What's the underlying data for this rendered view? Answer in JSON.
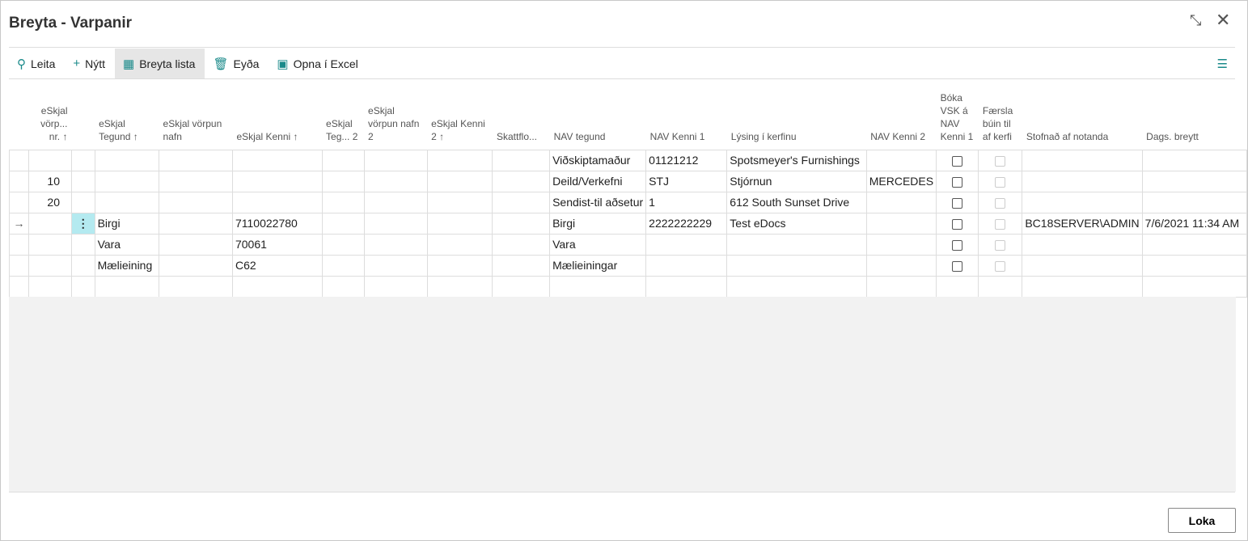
{
  "window": {
    "title": "Breyta - Varpanir"
  },
  "toolbar": {
    "items": [
      {
        "label": "Leita",
        "icon": "search-icon"
      },
      {
        "label": "Nýtt",
        "icon": "plus-icon"
      },
      {
        "label": "Breyta lista",
        "icon": "edit-list-icon",
        "active": true
      },
      {
        "label": "Eyða",
        "icon": "trash-icon"
      },
      {
        "label": "Opna í Excel",
        "icon": "excel-icon"
      }
    ]
  },
  "columns": [
    "",
    "eSkjal vörp... nr. ↑",
    "",
    "eSkjal Tegund ↑",
    "eSkjal vörpun nafn",
    "eSkjal Kenni ↑",
    "eSkjal Teg... 2",
    "eSkjal vörpun nafn 2",
    "eSkjal Kenni 2 ↑",
    "Skattflo...",
    "NAV tegund",
    "NAV Kenni 1",
    "Lýsing í kerfinu",
    "NAV Kenni 2",
    "Bóka VSK á NAV Kenni 1",
    "Færsla búin til af kerfi",
    "Stofnað af notanda",
    "Dags. breytt"
  ],
  "rows": [
    {
      "marker": "",
      "nr": "",
      "type": "",
      "map_name": "",
      "id": "",
      "type2": "",
      "map_name2": "",
      "id2": "",
      "tax": "",
      "nav_type": "Viðskiptamaður",
      "nav_id1": "01121212",
      "desc": "Spotsmeyer's Furnishings",
      "nav_id2": "",
      "vat": false,
      "sys": false,
      "created_by": "",
      "modified": ""
    },
    {
      "marker": "",
      "nr": "10",
      "type": "",
      "map_name": "",
      "id": "",
      "type2": "",
      "map_name2": "",
      "id2": "",
      "tax": "",
      "nav_type": "Deild/Verkefni",
      "nav_id1": "STJ",
      "desc": "Stjórnun",
      "nav_id2": "MERCEDES",
      "vat": false,
      "sys": false,
      "created_by": "",
      "modified": ""
    },
    {
      "marker": "",
      "nr": "20",
      "type": "",
      "map_name": "",
      "id": "",
      "type2": "",
      "map_name2": "",
      "id2": "",
      "tax": "",
      "nav_type": "Sendist-til aðsetur",
      "nav_id1": "1",
      "desc": "612 South Sunset Drive",
      "nav_id2": "",
      "vat": false,
      "sys": false,
      "created_by": "",
      "modified": ""
    },
    {
      "marker": "→",
      "nr": "",
      "type": "Birgi",
      "map_name": "",
      "id": "7110022780",
      "type2": "",
      "map_name2": "",
      "id2": "",
      "tax": "",
      "nav_type": "Birgi",
      "nav_id1": "2222222229",
      "desc": "Test eDocs",
      "nav_id2": "",
      "vat": false,
      "sys": false,
      "created_by": "BC18SERVER\\ADMIN",
      "modified": "7/6/2021 11:34 AM",
      "selected": true
    },
    {
      "marker": "",
      "nr": "",
      "type": "Vara",
      "map_name": "",
      "id": "70061",
      "type2": "",
      "map_name2": "",
      "id2": "",
      "tax": "",
      "nav_type": "Vara",
      "nav_id1": "",
      "desc": "",
      "nav_id2": "",
      "vat": false,
      "sys": false,
      "created_by": "",
      "modified": ""
    },
    {
      "marker": "",
      "nr": "",
      "type": "Mælieining",
      "map_name": "",
      "id": "C62",
      "type2": "",
      "map_name2": "",
      "id2": "",
      "tax": "",
      "nav_type": "Mælieiningar",
      "nav_id1": "",
      "desc": "",
      "nav_id2": "",
      "vat": false,
      "sys": false,
      "created_by": "",
      "modified": ""
    },
    {
      "marker": "",
      "nr": "",
      "type": "",
      "map_name": "",
      "id": "",
      "type2": "",
      "map_name2": "",
      "id2": "",
      "tax": "",
      "nav_type": "",
      "nav_id1": "",
      "desc": "",
      "nav_id2": "",
      "vat": null,
      "sys": null,
      "created_by": "",
      "modified": ""
    }
  ],
  "footer": {
    "close_label": "Loka"
  },
  "colors": {
    "accent": "#1a8a8a",
    "selected_cell": "#b4eaf0"
  }
}
